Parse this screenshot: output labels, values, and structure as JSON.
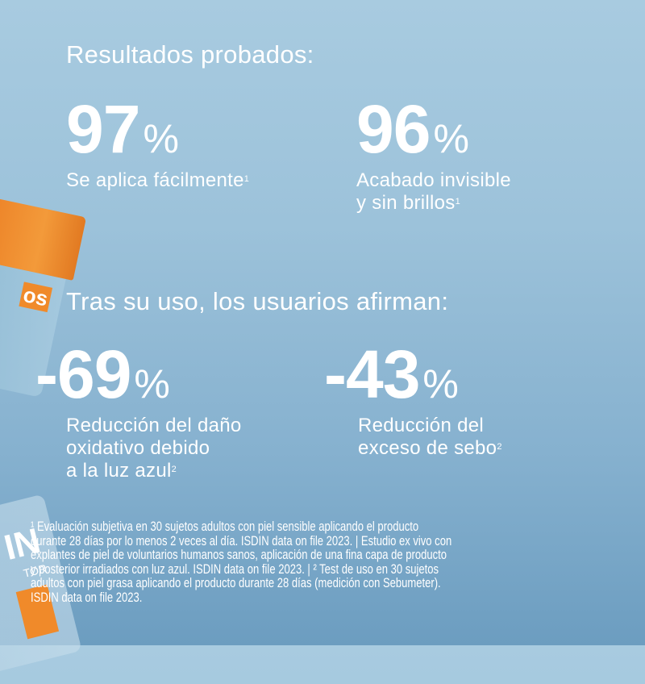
{
  "section1": {
    "heading": "Resultados probados:",
    "stats": [
      {
        "value": "97",
        "unit": "%",
        "label_lines": [
          "Se aplica fácilmente"
        ],
        "footnote_ref": "1"
      },
      {
        "value": "96",
        "unit": "%",
        "label_lines": [
          "Acabado invisible",
          "y sin brillos"
        ],
        "footnote_ref": "1"
      }
    ]
  },
  "section2": {
    "heading": "Tras su uso, los usuarios afirman:",
    "stats": [
      {
        "value": "-69",
        "unit": "%",
        "label_lines": [
          "Reducción del daño",
          "oxidativo debido",
          "a la luz azul"
        ],
        "footnote_ref": "2"
      },
      {
        "value": "-43",
        "unit": "%",
        "label_lines": [
          "Reducción del",
          "exceso de sebo"
        ],
        "footnote_ref": "2"
      }
    ]
  },
  "footnote": {
    "lines": [
      "¹ Evaluación subjetiva en 30 sujetos adultos con piel sensible aplicando el producto",
      "durante 28 días por lo menos 2 veces al día. ISDIN data on file 2023. | Estudio ex vivo con",
      "explantes de piel de voluntarios humanos sanos, aplicación de una fina capa de producto",
      "y posterior irradiados con luz azul. ISDIN data on file 2023. | ² Test de uso en 30 sujetos",
      "adultos con piel grasa aplicando el producto durante 28 días (medición con Sebumeter).",
      "ISDIN data on file 2023."
    ]
  },
  "product_images": {
    "jar_logo_fragments": [
      "os",
      "IN",
      "TOR"
    ]
  },
  "colors": {
    "background_top": "#a8cbe0",
    "background_bottom": "#6c9dc0",
    "cap_orange": "#f39a3a",
    "text": "#ffffff"
  }
}
